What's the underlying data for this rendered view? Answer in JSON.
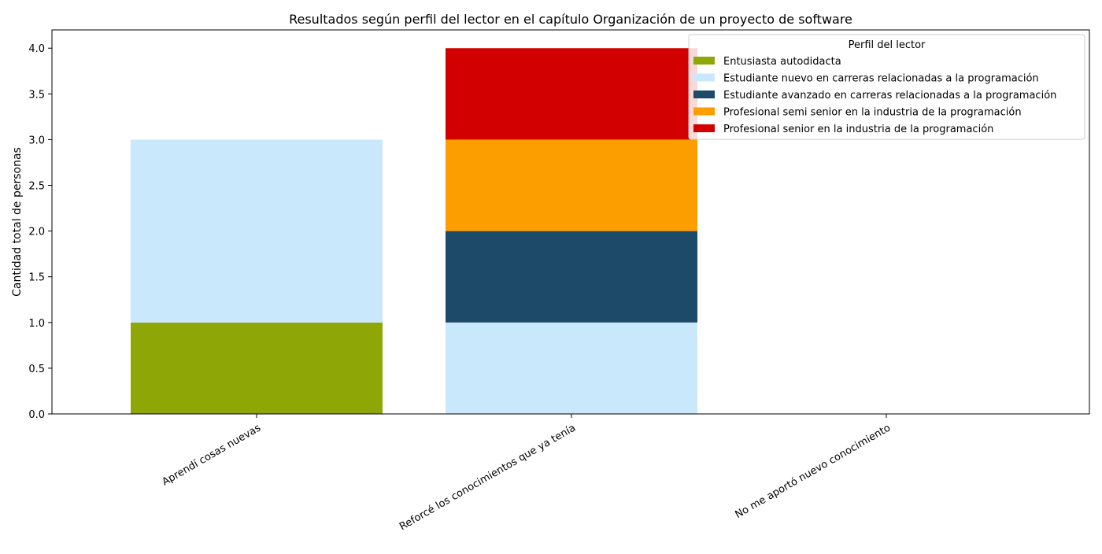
{
  "chart_data": {
    "type": "bar",
    "stacked": true,
    "title": "Resultados según perfil del lector en el capítulo Organización de un proyecto de software",
    "xlabel": "",
    "ylabel": "Cantidad total de personas",
    "ylim": [
      0,
      4.2
    ],
    "yticks": [
      "0.0",
      "0.5",
      "1.0",
      "1.5",
      "2.0",
      "2.5",
      "3.0",
      "3.5",
      "4.0"
    ],
    "categories": [
      "Aprendí cosas nuevas",
      "Reforcé los conocimientos que ya tenía",
      "No me aportó nuevo conocimiento"
    ],
    "grid": false,
    "legend": {
      "title": "Perfil del lector",
      "placement": "top-right"
    },
    "series": [
      {
        "name": "Entusiasta autodidacta",
        "color": "#8ea706",
        "values": [
          1,
          0,
          0
        ]
      },
      {
        "name": "Estudiante nuevo en carreras relacionadas a la programación",
        "color": "#cae8fc",
        "values": [
          2,
          1,
          0
        ]
      },
      {
        "name": "Estudiante avanzado en carreras relacionadas a la programación",
        "color": "#1d4a69",
        "values": [
          0,
          1,
          0
        ]
      },
      {
        "name": "Profesional semi senior en la industria de la programación",
        "color": "#fd9e00",
        "values": [
          0,
          1,
          0
        ]
      },
      {
        "name": "Profesional senior en la industria de la programación",
        "color": "#d20000",
        "values": [
          0,
          1,
          0
        ]
      }
    ]
  }
}
